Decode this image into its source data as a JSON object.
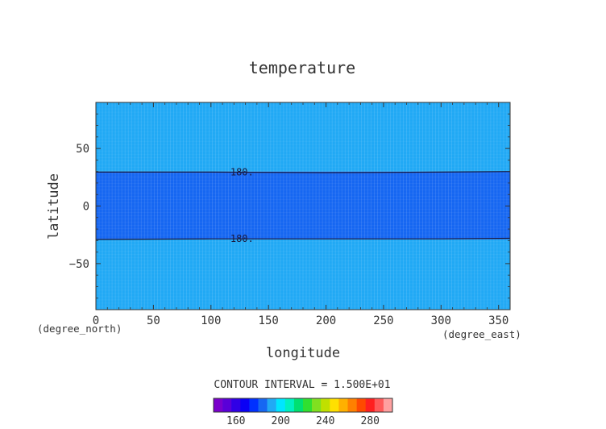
{
  "chart_data": {
    "type": "heatmap",
    "title": "temperature",
    "xlabel": "longitude",
    "ylabel": "latitude",
    "x_units": "(degree_east)",
    "y_units": "(degree_north)",
    "xlim": [
      0,
      360
    ],
    "ylim": [
      -90,
      90
    ],
    "x_ticks": [
      0,
      50,
      100,
      150,
      200,
      250,
      300,
      350
    ],
    "x_tick_labels": [
      "0",
      "50",
      "100",
      "150",
      "200",
      "250",
      "300",
      "350"
    ],
    "y_ticks": [
      50,
      0,
      -50
    ],
    "y_tick_labels": [
      "50",
      "0",
      "−50"
    ],
    "bands": [
      {
        "lat_min": -90,
        "lat_max": -29,
        "level_range": [
          180,
          195
        ],
        "color": "#21a9f5"
      },
      {
        "lat_min": -29,
        "lat_max": 30,
        "level_range": [
          165,
          180
        ],
        "color": "#1667f2"
      },
      {
        "lat_min": 30,
        "lat_max": 90,
        "level_range": [
          180,
          195
        ],
        "color": "#21a9f5"
      }
    ],
    "contours": [
      {
        "level": 180,
        "label": "180.",
        "lat_points": [
          [
            0,
            29.5
          ],
          [
            100,
            29.5
          ],
          [
            200,
            29
          ],
          [
            300,
            29.5
          ],
          [
            360,
            30
          ]
        ],
        "label_lon": 127
      },
      {
        "level": 180,
        "label": "180.",
        "lat_points": [
          [
            0,
            -29
          ],
          [
            100,
            -28.5
          ],
          [
            200,
            -28.5
          ],
          [
            300,
            -28.5
          ],
          [
            360,
            -28
          ]
        ],
        "label_lon": 127
      }
    ],
    "contour_interval_text": "CONTOUR INTERVAL = 1.500E+01",
    "colorbar": {
      "colors": [
        "#7a00cc",
        "#5a00d8",
        "#3000e6",
        "#0a00f5",
        "#0030ff",
        "#1667f2",
        "#21a9f5",
        "#00e5ff",
        "#00f0c0",
        "#00e070",
        "#30e030",
        "#80e020",
        "#c0e000",
        "#ffe000",
        "#ffb000",
        "#ff8000",
        "#ff4a00",
        "#ff2020",
        "#ff5a5a",
        "#ffa0a0"
      ],
      "tick_labels": [
        "160",
        "200",
        "240",
        "280"
      ],
      "tick_positions": [
        160,
        200,
        240,
        280
      ],
      "range": [
        140,
        300
      ]
    },
    "grid": true
  }
}
